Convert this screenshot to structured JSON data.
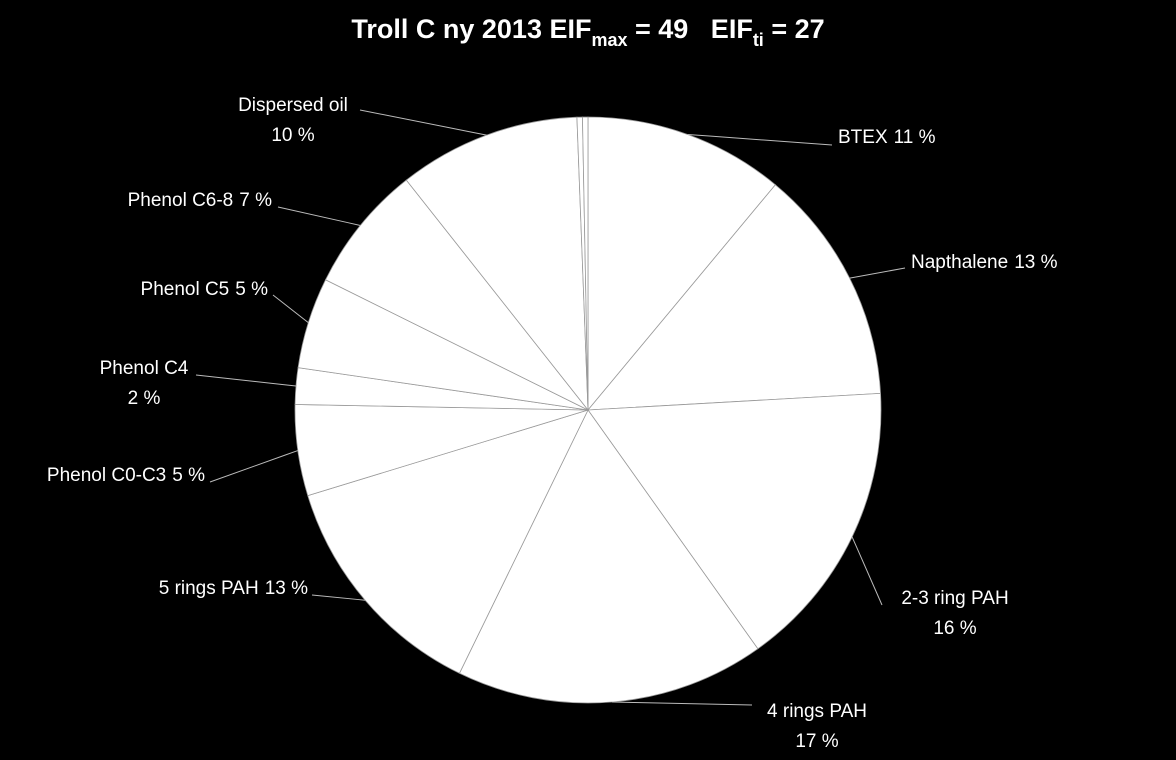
{
  "chart_data": {
    "type": "pie",
    "title_parts": [
      "Troll C ny 2013 EIF",
      "max",
      " = 49   EIF",
      "ti",
      " = 27"
    ],
    "categories": [
      "BTEX",
      "Napthalene",
      "2-3 ring PAH",
      "4 rings PAH",
      "5 rings PAH",
      "Phenol C0-C3",
      "Phenol C4",
      "Phenol C5",
      "Phenol C6-8",
      "Dispersed oil",
      null,
      null
    ],
    "values": [
      11,
      13,
      16,
      17,
      13,
      5,
      2,
      5,
      7,
      10,
      0.3,
      0.3
    ],
    "value_labels": [
      "11 %",
      "13 %",
      "16 %",
      "17 %",
      "13 %",
      "5 %",
      "2 %",
      "5 %",
      "7 %",
      "10 %",
      null,
      null
    ],
    "color": "#ffffff",
    "background": "#000000"
  }
}
